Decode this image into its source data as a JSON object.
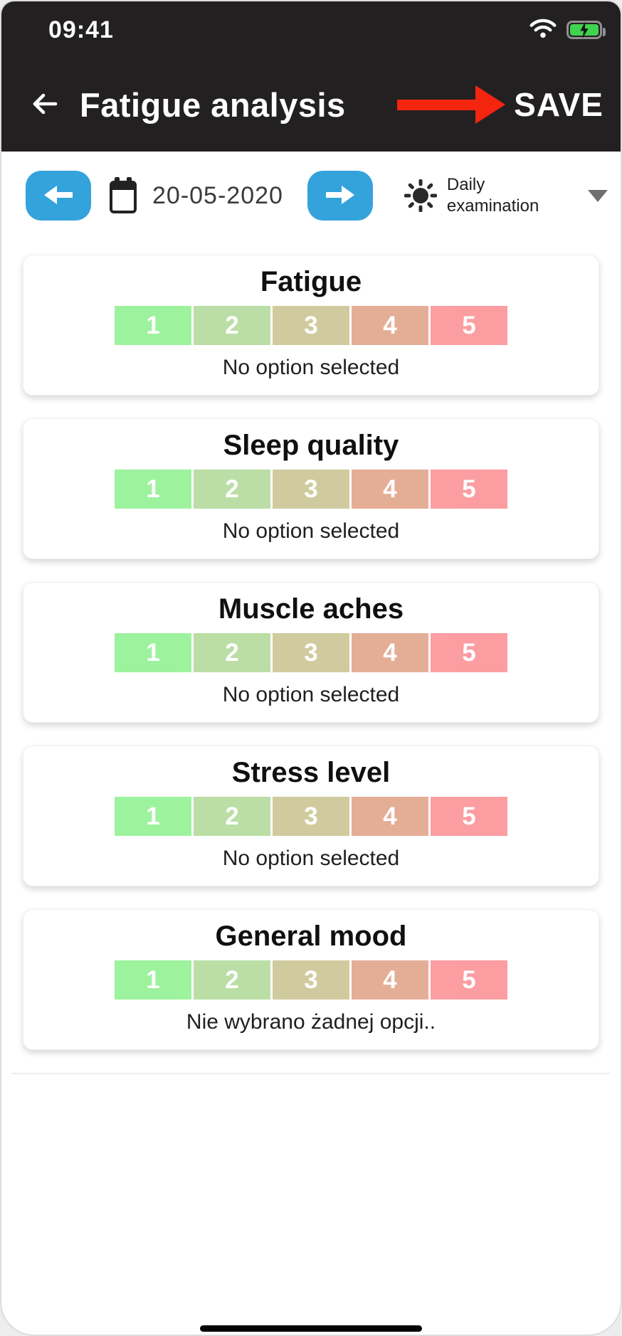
{
  "status_bar": {
    "time": "09:41",
    "wifi_icon": "wifi-icon",
    "battery_icon": "battery-charging-icon"
  },
  "nav": {
    "back_icon": "arrow-left-icon",
    "title": "Fatigue analysis",
    "save_label": "SAVE",
    "annotation_icon": "red-arrow-pointing-to-save"
  },
  "toolbar": {
    "prev_icon": "arrow-left-icon",
    "calendar_icon": "calendar-icon",
    "date": "20-05-2020",
    "next_icon": "arrow-right-icon",
    "exam_icon": "sun-icon",
    "exam_type": "Daily examination",
    "caret_icon": "chevron-down-icon"
  },
  "option_scale": {
    "labels": [
      "1",
      "2",
      "3",
      "4",
      "5"
    ],
    "colors": [
      "#9af29a",
      "#b8dda2",
      "#cfc99b",
      "#e3aa92",
      "#fc9a9e"
    ],
    "text_color": "#ffffff"
  },
  "cards": [
    {
      "title": "Fatigue",
      "caption": "No option selected"
    },
    {
      "title": "Sleep quality",
      "caption": "No option selected"
    },
    {
      "title": "Muscle aches",
      "caption": "No option selected"
    },
    {
      "title": "Stress level",
      "caption": "No option selected"
    },
    {
      "title": "General mood",
      "caption": "Nie wybrano żadnej opcji.."
    }
  ],
  "colors": {
    "header_bg": "#232021",
    "accent_blue": "#34a3dc",
    "annotation_red": "#f3250f",
    "battery_green": "#3fd44f"
  }
}
